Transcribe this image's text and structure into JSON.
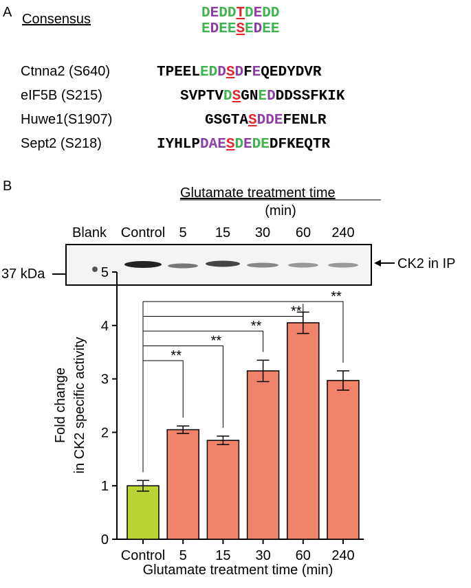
{
  "panel_a": {
    "label": "A",
    "consensus_label": "Consensus",
    "consensus": [
      [
        {
          "text": "D",
          "color": "#3fb34f"
        },
        {
          "text": "E",
          "color": "#8e3fa6"
        },
        {
          "text": "DD",
          "color": "#3fb34f"
        },
        {
          "text": "T",
          "color": "#e3262b",
          "underline": true
        },
        {
          "text": "D",
          "color": "#3fb34f"
        },
        {
          "text": "E",
          "color": "#8e3fa6"
        },
        {
          "text": "DD",
          "color": "#3fb34f"
        }
      ],
      [
        {
          "text": "E",
          "color": "#3fb34f"
        },
        {
          "text": "D",
          "color": "#8e3fa6"
        },
        {
          "text": "EE",
          "color": "#3fb34f"
        },
        {
          "text": "S",
          "color": "#e3262b",
          "underline": true
        },
        {
          "text": "E",
          "color": "#3fb34f"
        },
        {
          "text": "D",
          "color": "#8e3fa6"
        },
        {
          "text": "EE",
          "color": "#3fb34f"
        }
      ]
    ],
    "sites": [
      {
        "name": "Ctnna2 (S640)",
        "sequence": [
          {
            "text": "TPEEL",
            "color": "#000000"
          },
          {
            "text": "ED",
            "color": "#3fb34f"
          },
          {
            "text": "D",
            "color": "#8e3fa6"
          },
          {
            "text": "S",
            "color": "#e3262b",
            "underline": true
          },
          {
            "text": "D",
            "color": "#8e3fa6"
          },
          {
            "text": "F",
            "color": "#000000"
          },
          {
            "text": "E",
            "color": "#8e3fa6"
          },
          {
            "text": "QEDYDVR",
            "color": "#000000"
          }
        ]
      },
      {
        "name": "eIF5B (S215)",
        "sequence": [
          {
            "text": "SVPTV",
            "color": "#000000"
          },
          {
            "text": "D",
            "color": "#3fb34f"
          },
          {
            "text": "S",
            "color": "#e3262b",
            "underline": true
          },
          {
            "text": "GN",
            "color": "#000000"
          },
          {
            "text": "E",
            "color": "#3fb34f"
          },
          {
            "text": "D",
            "color": "#8e3fa6"
          },
          {
            "text": "DDSSFKIK",
            "color": "#000000"
          }
        ]
      },
      {
        "name": "Huwe1(S1907)",
        "sequence": [
          {
            "text": "GSGTA",
            "color": "#000000"
          },
          {
            "text": "S",
            "color": "#e3262b",
            "underline": true
          },
          {
            "text": "DDE",
            "color": "#8e3fa6"
          },
          {
            "text": "FENLR",
            "color": "#000000"
          }
        ]
      },
      {
        "name": "Sept2 (S218)",
        "sequence": [
          {
            "text": "IYHLP",
            "color": "#000000"
          },
          {
            "text": "DAE",
            "color": "#8e3fa6"
          },
          {
            "text": "S",
            "color": "#e3262b",
            "underline": true
          },
          {
            "text": "D",
            "color": "#3fb34f"
          },
          {
            "text": "E",
            "color": "#8e3fa6"
          },
          {
            "text": "DE",
            "color": "#3fb34f"
          },
          {
            "text": "DFKEQTR",
            "color": "#000000"
          }
        ]
      }
    ]
  },
  "panel_b": {
    "label": "B",
    "blot_title": "Glutamate treatment time",
    "blot_unit": "(min)",
    "lanes": [
      "Blank",
      "Control",
      "5",
      "15",
      "30",
      "60",
      "240"
    ],
    "marker": "37 kDa",
    "band_label": "CK2 in IP"
  },
  "chart_data": {
    "type": "bar",
    "categories": [
      "Control",
      "5",
      "15",
      "30",
      "60",
      "240"
    ],
    "values": [
      1.0,
      2.05,
      1.85,
      3.15,
      4.05,
      2.97
    ],
    "errors": [
      0.1,
      0.07,
      0.08,
      0.2,
      0.2,
      0.18
    ],
    "colors": [
      "#b9d433",
      "#f0836a",
      "#f0836a",
      "#f0836a",
      "#f0836a",
      "#f0836a"
    ],
    "significance_labels": [
      null,
      "**",
      "**",
      "**",
      "**",
      "**"
    ],
    "ylabel": [
      "Fold change",
      "in CK2 specific activity"
    ],
    "xlabel": "Glutamate treatment time (min)",
    "ylim": [
      0,
      5
    ],
    "yticks": [
      0,
      1,
      2,
      3,
      4,
      5
    ]
  }
}
